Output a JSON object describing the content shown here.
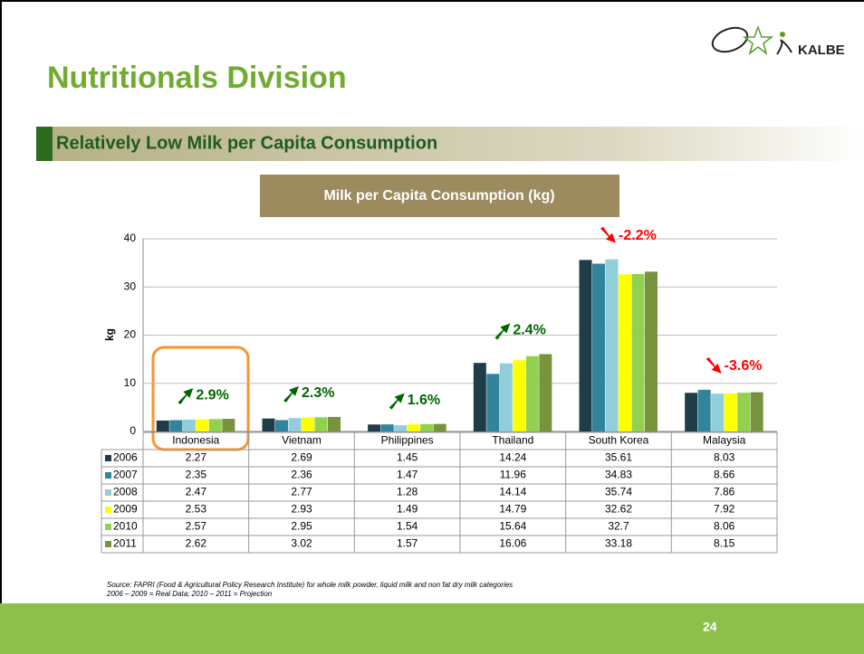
{
  "header": {
    "title": "Nutritionals Division",
    "logo": "KALBE",
    "subtitle": "Relatively Low Milk per Capita Consumption"
  },
  "chart_data": {
    "type": "bar",
    "title": "Milk per Capita Consumption (kg)",
    "y_label": "kg",
    "categories": [
      "Indonesia",
      "Vietnam",
      "Philippines",
      "Thailand",
      "South Korea",
      "Malaysia"
    ],
    "series": [
      {
        "name": "2006",
        "color": "#1f3d48",
        "values": [
          2.27,
          2.69,
          1.45,
          14.24,
          35.61,
          8.03
        ]
      },
      {
        "name": "2007",
        "color": "#31849b",
        "values": [
          2.35,
          2.36,
          1.47,
          11.96,
          34.83,
          8.66
        ]
      },
      {
        "name": "2008",
        "color": "#92cddc",
        "values": [
          2.47,
          2.77,
          1.28,
          14.14,
          35.74,
          7.86
        ]
      },
      {
        "name": "2009",
        "color": "#ffff00",
        "values": [
          2.53,
          2.93,
          1.49,
          14.79,
          32.62,
          7.92
        ]
      },
      {
        "name": "2010",
        "color": "#92d050",
        "values": [
          2.57,
          2.95,
          1.54,
          15.64,
          32.7,
          8.06
        ]
      },
      {
        "name": "2011",
        "color": "#77933c",
        "values": [
          2.62,
          3.02,
          1.57,
          16.06,
          33.18,
          8.15
        ]
      }
    ],
    "ylim": [
      0,
      40
    ],
    "yticks": [
      0,
      10,
      20,
      30,
      40
    ],
    "grid": true,
    "annotations": [
      {
        "text": "2.9%",
        "direction": "up",
        "color": "#006600"
      },
      {
        "text": "2.3%",
        "direction": "up",
        "color": "#006600"
      },
      {
        "text": "1.6%",
        "direction": "up",
        "color": "#006600"
      },
      {
        "text": "2.4%",
        "direction": "up",
        "color": "#006600"
      },
      {
        "text": "-2.2%",
        "direction": "down",
        "color": "#ff0000"
      },
      {
        "text": "-3.6%",
        "direction": "down",
        "color": "#ff0000"
      }
    ]
  },
  "source": [
    "Source: FAPRI (Food & Agricultural Policy Research Institute)  for whole milk powder, liquid milk and non fat dry milk categories",
    "2006 – 2009 = Real Data; 2010 – 2011 = Projection"
  ],
  "page_number": "24"
}
